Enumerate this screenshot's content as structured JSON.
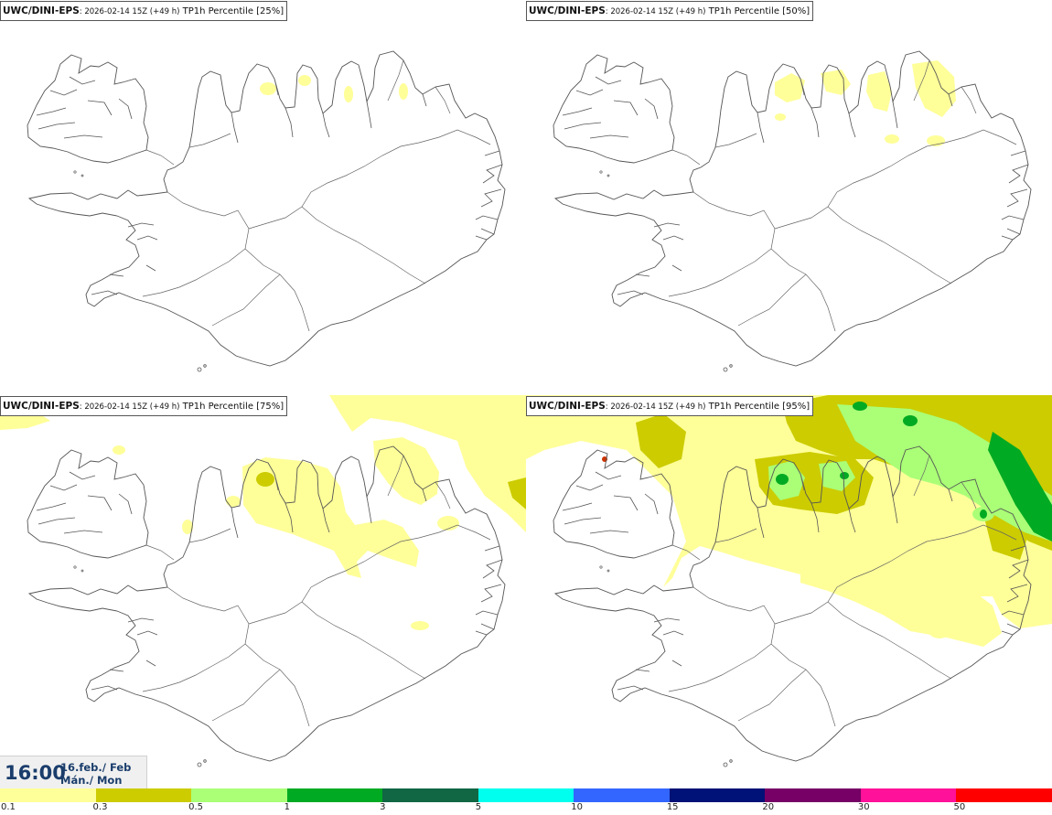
{
  "panels": [
    {
      "model": "UWC/DINI-EPS",
      "run": ": 2026-02-14 15Z (+49 h)",
      "field": " TP1h Percentile [25%]",
      "precip_level": "25%"
    },
    {
      "model": "UWC/DINI-EPS",
      "run": ": 2026-02-14 15Z (+49 h)",
      "field": " TP1h Percentile [50%]",
      "precip_level": "50%"
    },
    {
      "model": "UWC/DINI-EPS",
      "run": ": 2026-02-14 15Z (+49 h)",
      "field": " TP1h Percentile [75%]",
      "precip_level": "75%"
    },
    {
      "model": "UWC/DINI-EPS",
      "run": ": 2026-02-14 15Z (+49 h)",
      "field": " TP1h Percentile [95%]",
      "precip_level": "95%"
    }
  ],
  "valid_time": {
    "time": "16:00",
    "date": "16.feb./ Feb",
    "weekday": "Mán./ Mon"
  },
  "legend": {
    "labels": [
      "0.1",
      "0.3",
      "0.5",
      "1",
      "3",
      "5",
      "10",
      "15",
      "20",
      "30",
      "50"
    ],
    "colors": [
      "#ffff99",
      "#cccc00",
      "#aaff77",
      "#00aa22",
      "#116644",
      "#00ffee",
      "#3366ff",
      "#001177",
      "#770066",
      "#ff1199",
      "#ff0000"
    ]
  }
}
